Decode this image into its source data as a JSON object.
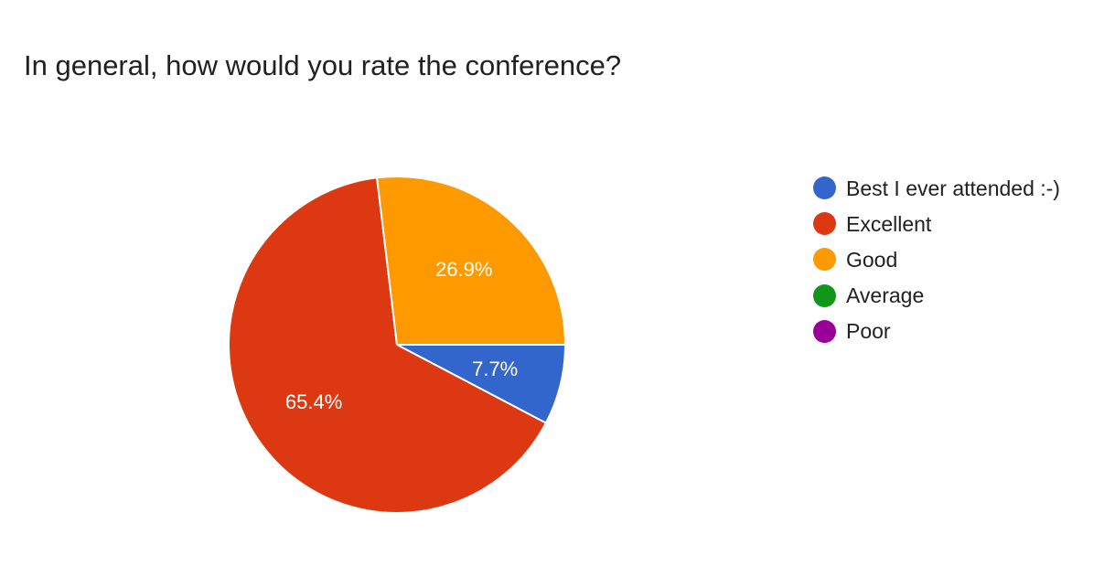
{
  "chart_data": {
    "type": "pie",
    "title": "In general, how would you rate the conference?",
    "categories": [
      "Best I ever attended :-)",
      "Excellent",
      "Good",
      "Average",
      "Poor"
    ],
    "values": [
      7.7,
      65.4,
      26.9,
      0,
      0
    ],
    "value_labels": [
      "7.7%",
      "65.4%",
      "26.9%",
      "",
      ""
    ],
    "colors": [
      "#3366cc",
      "#dc3912",
      "#ff9900",
      "#109618",
      "#990099"
    ],
    "legend_position": "right",
    "start": "3 o'clock",
    "direction": "clockwise"
  }
}
